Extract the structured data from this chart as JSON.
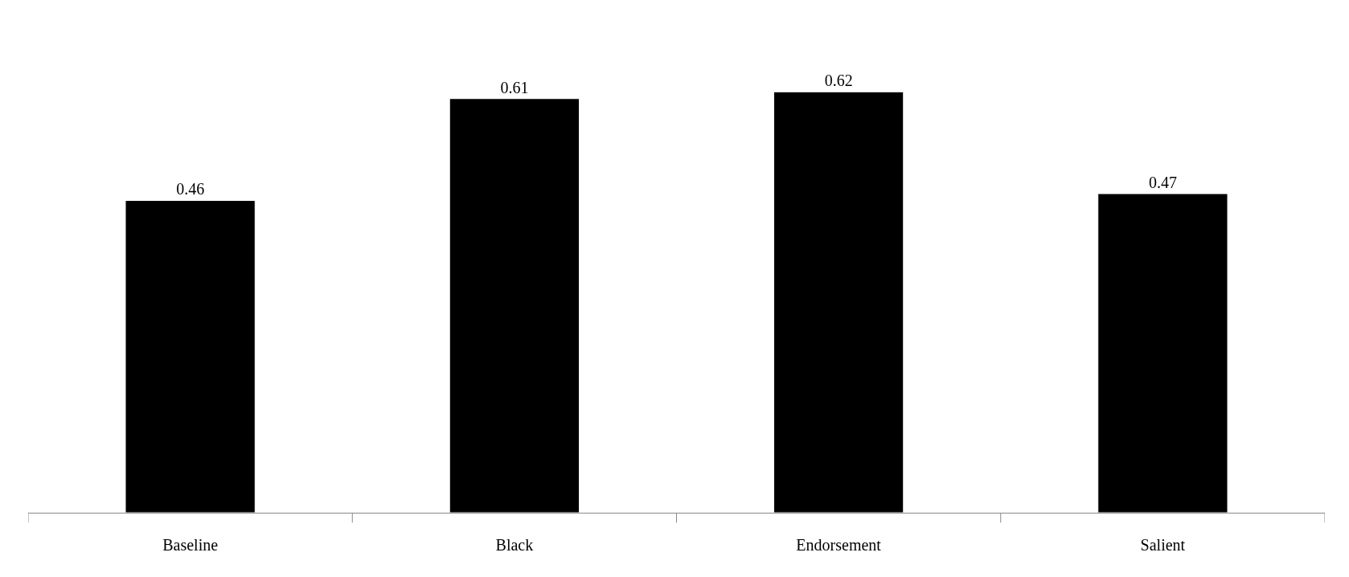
{
  "chart_data": {
    "type": "bar",
    "categories": [
      "Baseline",
      "Black",
      "Endorsement",
      "Salient"
    ],
    "values": [
      0.46,
      0.61,
      0.62,
      0.47
    ],
    "color": "#000000",
    "data_labels": true
  }
}
